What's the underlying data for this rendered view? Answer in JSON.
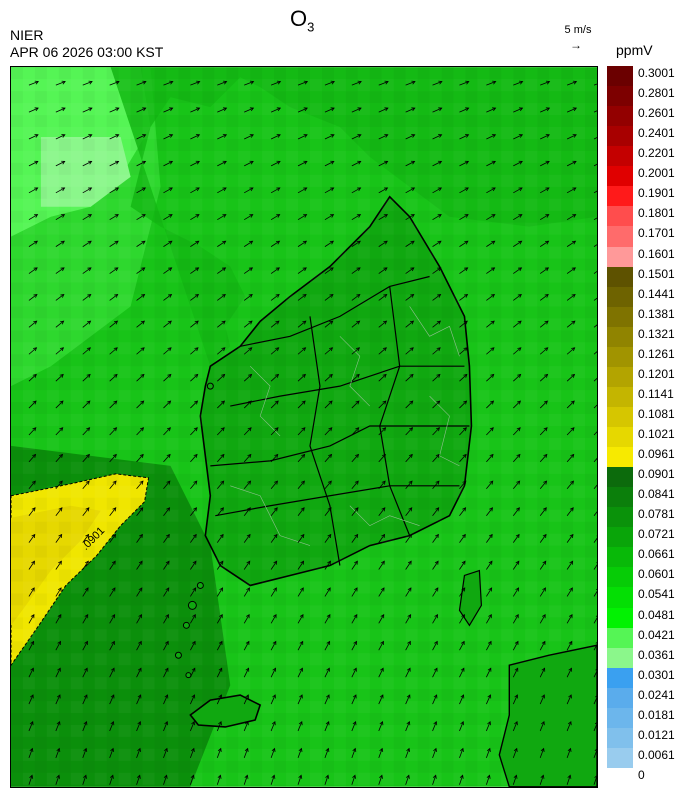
{
  "title": {
    "species": "O",
    "subscript": "3"
  },
  "agency": "NIER",
  "timestamp": "APR 06 2026 03:00 KST",
  "wind_reference": "5 m/s",
  "unit": "ppmV",
  "contour_label": ".0901",
  "legend": {
    "labels": [
      "0.3001",
      "0.2801",
      "0.2601",
      "0.2401",
      "0.2201",
      "0.2001",
      "0.1901",
      "0.1801",
      "0.1701",
      "0.1601",
      "0.1501",
      "0.1441",
      "0.1381",
      "0.1321",
      "0.1261",
      "0.1201",
      "0.1141",
      "0.1081",
      "0.1021",
      "0.0961",
      "0.0901",
      "0.0841",
      "0.0781",
      "0.0721",
      "0.0661",
      "0.0601",
      "0.0541",
      "0.0481",
      "0.0421",
      "0.0361",
      "0.0301",
      "0.0241",
      "0.0181",
      "0.0121",
      "0.0061",
      "0"
    ],
    "colors": [
      "#6b0000",
      "#7d0000",
      "#930000",
      "#a80000",
      "#c40000",
      "#e00000",
      "#ff1a1a",
      "#ff4d4d",
      "#ff6b6b",
      "#ff9999",
      "#5e5200",
      "#6e6300",
      "#7f7300",
      "#908400",
      "#a19400",
      "#b3a400",
      "#c4b500",
      "#d6c600",
      "#e6d800",
      "#f7ea00",
      "#0c6b0c",
      "#0b7f0b",
      "#0a920a",
      "#09a509",
      "#08b908",
      "#06cc06",
      "#04df04",
      "#02f202",
      "#55f555",
      "#8bf78b",
      "#3aa0f0",
      "#5aacec",
      "#6cb6ec",
      "#80c0ec",
      "#99ccee"
    ]
  },
  "colors": {
    "sea_base": "#18c418",
    "land_base": "#10b010",
    "high_zone": "#f0e600",
    "low_zone": "#8bf78b",
    "coast_line": "#000000",
    "district_line": "#8fbf8f",
    "arrow": "#000000"
  }
}
